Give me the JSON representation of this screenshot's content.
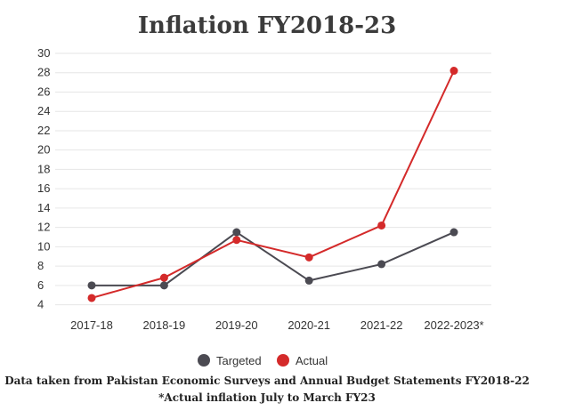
{
  "chart_data": {
    "type": "line",
    "title": "Inflation FY2018-23",
    "categories": [
      "2017-18",
      "2018-19",
      "2019-20",
      "2020-21",
      "2021-22",
      "2022-2023*"
    ],
    "y_ticks": [
      4,
      6,
      8,
      10,
      12,
      14,
      16,
      18,
      20,
      22,
      24,
      26,
      28,
      30
    ],
    "ylim": [
      3.5,
      30
    ],
    "grid": true,
    "legend_position": "bottom",
    "series": [
      {
        "name": "Targeted",
        "color": "#4b4a52",
        "values": [
          6.0,
          6.0,
          11.5,
          6.5,
          8.2,
          11.5
        ]
      },
      {
        "name": "Actual",
        "color": "#d42a2a",
        "values": [
          4.7,
          6.8,
          10.7,
          8.9,
          12.2,
          28.2
        ]
      }
    ],
    "notes": [
      "Data taken from Pakistan Economic Surveys and Annual Budget Statements FY2018-22",
      "*Actual inflation July to March FY23"
    ]
  }
}
